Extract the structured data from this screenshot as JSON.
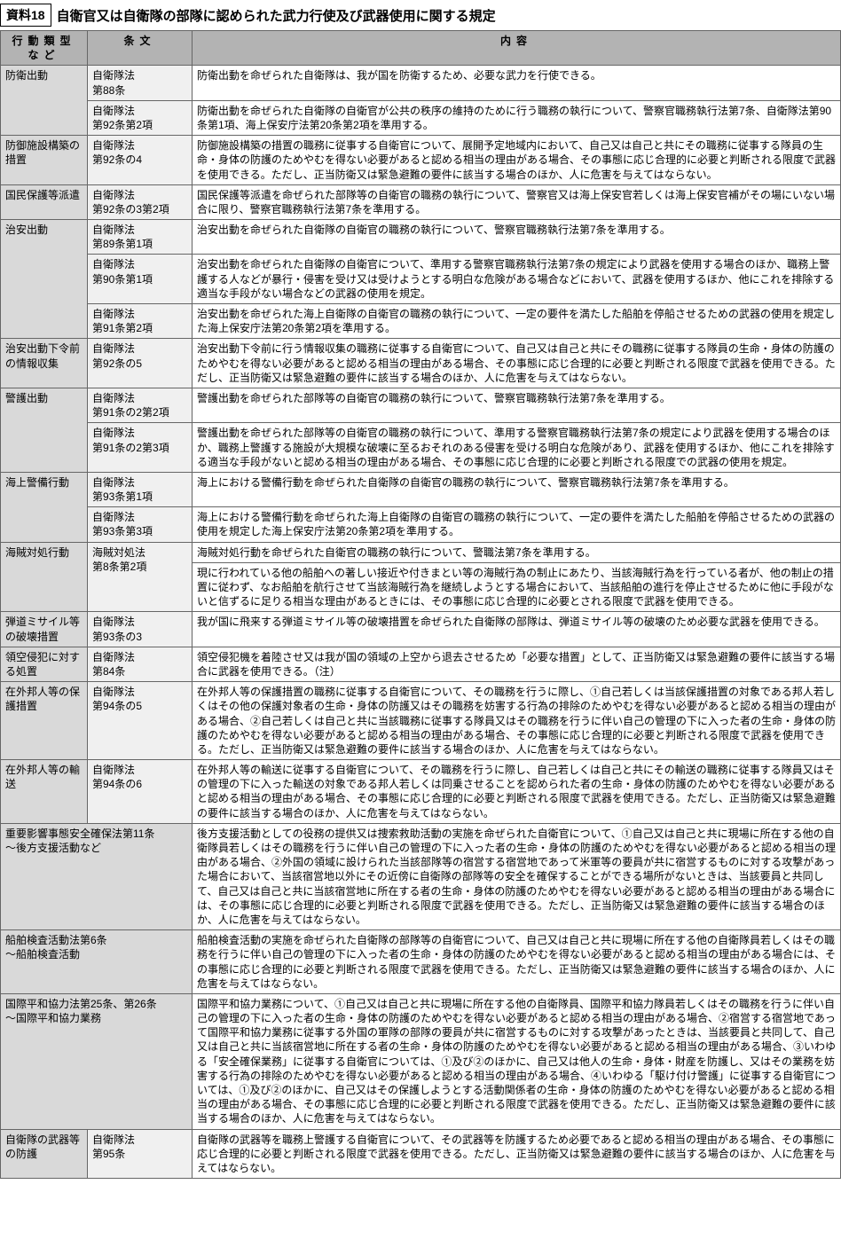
{
  "colors": {
    "header_bg": "#b3b3b3",
    "action_bg": "#d9d9d9",
    "law_bg": "#f0f0f0",
    "content_bg": "#ffffff",
    "border": "#666666"
  },
  "header": {
    "label": "資料18",
    "title": "自衛官又は自衛隊の部隊に認められた武力行使及び武器使用に関する規定"
  },
  "columns": {
    "action": "行動類型など",
    "law": "条文",
    "content": "内容"
  },
  "rows": [
    {
      "action": "防衛出動",
      "action_rowspan": 2,
      "law": "自衛隊法\n第88条",
      "content": "防衛出動を命ぜられた自衛隊は、我が国を防衛するため、必要な武力を行使できる。"
    },
    {
      "law": "自衛隊法\n第92条第2項",
      "content": "防衛出動を命ぜられた自衛隊の自衛官が公共の秩序の維持のために行う職務の執行について、警察官職務執行法第7条、自衛隊法第90条第1項、海上保安庁法第20条第2項を準用する。"
    },
    {
      "action": "防御施設構築の措置",
      "law": "自衛隊法\n第92条の4",
      "content": "防御施設構築の措置の職務に従事する自衛官について、展開予定地域内において、自己又は自己と共にその職務に従事する隊員の生命・身体の防護のためやむを得ない必要があると認める相当の理由がある場合、その事態に応じ合理的に必要と判断される限度で武器を使用できる。ただし、正当防衛又は緊急避難の要件に該当する場合のほか、人に危害を与えてはならない。"
    },
    {
      "action": "国民保護等派遣",
      "law": "自衛隊法\n第92条の3第2項",
      "content": "国民保護等派遣を命ぜられた部隊等の自衛官の職務の執行について、警察官又は海上保安官若しくは海上保安官補がその場にいない場合に限り、警察官職務執行法第7条を準用する。"
    },
    {
      "action": "治安出動",
      "action_rowspan": 3,
      "law": "自衛隊法\n第89条第1項",
      "content": "治安出動を命ぜられた自衛隊の自衛官の職務の執行について、警察官職務執行法第7条を準用する。"
    },
    {
      "law": "自衛隊法\n第90条第1項",
      "content": "治安出動を命ぜられた自衛隊の自衛官について、準用する警察官職務執行法第7条の規定により武器を使用する場合のほか、職務上警護する人などが暴行・侵害を受け又は受けようとする明白な危険がある場合などにおいて、武器を使用するほか、他にこれを排除する適当な手段がない場合などの武器の使用を規定。"
    },
    {
      "law": "自衛隊法\n第91条第2項",
      "content": "治安出動を命ぜられた海上自衛隊の自衛官の職務の執行について、一定の要件を満たした船舶を停船させるための武器の使用を規定した海上保安庁法第20条第2項を準用する。"
    },
    {
      "action": "治安出動下令前の情報収集",
      "law": "自衛隊法\n第92条の5",
      "content": "治安出動下令前に行う情報収集の職務に従事する自衛官について、自己又は自己と共にその職務に従事する隊員の生命・身体の防護のためやむを得ない必要があると認める相当の理由がある場合、その事態に応じ合理的に必要と判断される限度で武器を使用できる。ただし、正当防衛又は緊急避難の要件に該当する場合のほか、人に危害を与えてはならない。"
    },
    {
      "action": "警護出動",
      "action_rowspan": 2,
      "law": "自衛隊法\n第91条の2第2項",
      "content": "警護出動を命ぜられた部隊等の自衛官の職務の執行について、警察官職務執行法第7条を準用する。"
    },
    {
      "law": "自衛隊法\n第91条の2第3項",
      "content": "警護出動を命ぜられた部隊等の自衛官の職務の執行について、準用する警察官職務執行法第7条の規定により武器を使用する場合のほか、職務上警護する施設が大規模な破壊に至るおそれのある侵害を受ける明白な危険があり、武器を使用するほか、他にこれを排除する適当な手段がないと認める相当の理由がある場合、その事態に応じ合理的に必要と判断される限度での武器の使用を規定。"
    },
    {
      "action": "海上警備行動",
      "action_rowspan": 2,
      "law": "自衛隊法\n第93条第1項",
      "content": "海上における警備行動を命ぜられた自衛隊の自衛官の職務の執行について、警察官職務執行法第7条を準用する。"
    },
    {
      "law": "自衛隊法\n第93条第3項",
      "content": "海上における警備行動を命ぜられた海上自衛隊の自衛官の職務の執行について、一定の要件を満たした船舶を停船させるための武器の使用を規定した海上保安庁法第20条第2項を準用する。"
    },
    {
      "action": "海賊対処行動",
      "action_rowspan": 2,
      "law_rowspan": 2,
      "law": "海賊対処法\n第8条第2項",
      "content": "海賊対処行動を命ぜられた自衛官の職務の執行について、警職法第7条を準用する。",
      "split_first": true
    },
    {
      "content": "現に行われている他の船舶への著しい接近や付きまとい等の海賊行為の制止にあたり、当該海賊行為を行っている者が、他の制止の措置に従わず、なお船舶を航行させて当該海賊行為を継続しようとする場合において、当該船舶の進行を停止させるために他に手段がないと信ずるに足りる相当な理由があるときには、その事態に応じ合理的に必要とされる限度で武器を使用できる。"
    },
    {
      "action": "弾道ミサイル等の破壊措置",
      "law": "自衛隊法\n第93条の3",
      "content": "我が国に飛来する弾道ミサイル等の破壊措置を命ぜられた自衛隊の部隊は、弾道ミサイル等の破壊のため必要な武器を使用できる。"
    },
    {
      "action": "領空侵犯に対する処置",
      "law": "自衛隊法\n第84条",
      "content": "領空侵犯機を着陸させ又は我が国の領域の上空から退去させるため「必要な措置」として、正当防衛又は緊急避難の要件に該当する場合に武器を使用できる。（注）"
    },
    {
      "action": "在外邦人等の保護措置",
      "law": "自衛隊法\n第94条の5",
      "content": "在外邦人等の保護措置の職務に従事する自衛官について、その職務を行うに際し、①自己若しくは当該保護措置の対象である邦人若しくはその他の保護対象者の生命・身体の防護又はその職務を妨害する行為の排除のためやむを得ない必要があると認める相当の理由がある場合、②自己若しくは自己と共に当該職務に従事する隊員又はその職務を行うに伴い自己の管理の下に入った者の生命・身体の防護のためやむを得ない必要があると認める相当の理由がある場合、その事態に応じ合理的に必要と判断される限度で武器を使用できる。ただし、正当防衛又は緊急避難の要件に該当する場合のほか、人に危害を与えてはならない。"
    },
    {
      "action": "在外邦人等の輸送",
      "law": "自衛隊法\n第94条の6",
      "content": "在外邦人等の輸送に従事する自衛官について、その職務を行うに際し、自己若しくは自己と共にその輸送の職務に従事する隊員又はその管理の下に入った輸送の対象である邦人若しくは同乗させることを認められた者の生命・身体の防護のためやむを得ない必要があると認める相当の理由がある場合、その事態に応じ合理的に必要と判断される限度で武器を使用できる。ただし、正当防衛又は緊急避難の要件に該当する場合のほか、人に危害を与えてはならない。"
    },
    {
      "action": "重要影響事態安全確保法第11条\n〜後方支援活動など",
      "content": "後方支援活動としての役務の提供又は捜索救助活動の実施を命ぜられた自衛官について、①自己又は自己と共に現場に所在する他の自衛隊員若しくはその職務を行うに伴い自己の管理の下に入った者の生命・身体の防護のためやむを得ない必要があると認める相当の理由がある場合、②外国の領域に設けられた当該部隊等の宿営する宿営地であって米軍等の要員が共に宿営するものに対する攻撃があった場合において、当該宿営地以外にその近傍に自衛隊の部隊等の安全を確保することができる場所がないときは、当該要員と共同して、自己又は自己と共に当該宿営地に所在する者の生命・身体の防護のためやむを得ない必要があると認める相当の理由がある場合には、その事態に応じ合理的に必要と判断される限度で武器を使用できる。ただし、正当防衛又は緊急避難の要件に該当する場合のほか、人に危害を与えてはならない。",
      "colspan_law": true
    },
    {
      "action": "船舶検査活動法第6条\n〜船舶検査活動",
      "content": "船舶検査活動の実施を命ぜられた自衛隊の部隊等の自衛官について、自己又は自己と共に現場に所在する他の自衛隊員若しくはその職務を行うに伴い自己の管理の下に入った者の生命・身体の防護のためやむを得ない必要があると認める相当の理由がある場合には、その事態に応じ合理的に必要と判断される限度で武器を使用できる。ただし、正当防衛又は緊急避難の要件に該当する場合のほか、人に危害を与えてはならない。",
      "colspan_law": true
    },
    {
      "action": "国際平和協力法第25条、第26条\n〜国際平和協力業務",
      "content": "国際平和協力業務について、①自己又は自己と共に現場に所在する他の自衛隊員、国際平和協力隊員若しくはその職務を行うに伴い自己の管理の下に入った者の生命・身体の防護のためやむを得ない必要があると認める相当の理由がある場合、②宿営する宿営地であって国際平和協力業務に従事する外国の軍隊の部隊の要員が共に宿営するものに対する攻撃があったときは、当該要員と共同して、自己又は自己と共に当該宿営地に所在する者の生命・身体の防護のためやむを得ない必要があると認める相当の理由がある場合、③いわゆる「安全確保業務」に従事する自衛官については、①及び②のほかに、自己又は他人の生命・身体・財産を防護し、又はその業務を妨害する行為の排除のためやむを得ない必要があると認める相当の理由がある場合、④いわゆる「駆け付け警護」に従事する自衛官については、①及び②のほかに、自己又はその保護しようとする活動関係者の生命・身体の防護のためやむを得ない必要があると認める相当の理由がある場合、その事態に応じ合理的に必要と判断される限度で武器を使用できる。ただし、正当防衛又は緊急避難の要件に該当する場合のほか、人に危害を与えてはならない。",
      "colspan_law": true
    },
    {
      "action": "自衛隊の武器等の防護",
      "law": "自衛隊法\n第95条",
      "content": "自衛隊の武器等を職務上警護する自衛官について、その武器等を防護するため必要であると認める相当の理由がある場合、その事態に応じ合理的に必要と判断される限度で武器を使用できる。ただし、正当防衛又は緊急避難の要件に該当する場合のほか、人に危害を与えてはならない。"
    }
  ]
}
